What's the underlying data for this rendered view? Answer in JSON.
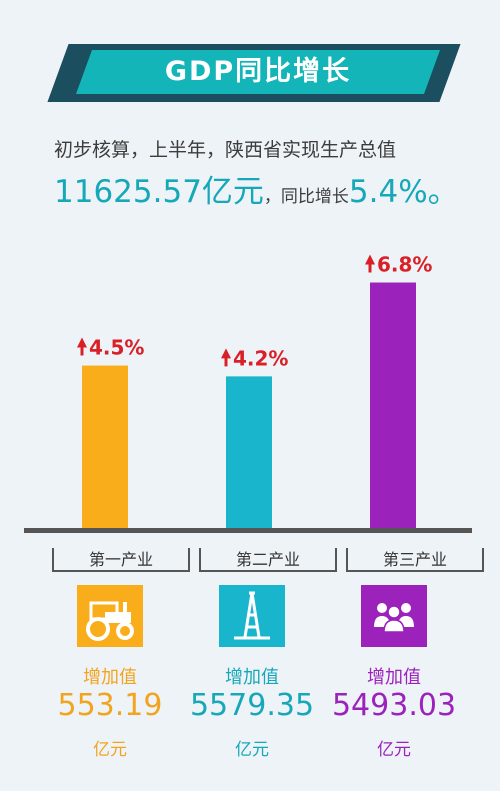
{
  "title": "GDP同比增长",
  "intro": {
    "line1": "初步核算，上半年，陕西省实现生产总值",
    "total": "11625.57亿元",
    "mid": "，同比增长",
    "growth": "5.4%。"
  },
  "chart_data": {
    "type": "bar",
    "categories": [
      "第一产业",
      "第二产业",
      "第三产业"
    ],
    "values": [
      4.5,
      4.2,
      6.8
    ],
    "data_labels": [
      "4.5%",
      "4.2%",
      "6.8%"
    ],
    "colors": [
      "#f9ad1b",
      "#18b5cc",
      "#9b22bb"
    ],
    "title": "",
    "xlabel": "",
    "ylabel": ""
  },
  "industries": [
    {
      "name": "第一产业",
      "icon": "tractor-icon",
      "value_label": "增加值",
      "value": "553.19",
      "unit": "亿元",
      "color": "#f3a41f"
    },
    {
      "name": "第二产业",
      "icon": "oil-derrick-icon",
      "value_label": "增加值",
      "value": "5579.35",
      "unit": "亿元",
      "color": "#16a8b8"
    },
    {
      "name": "第三产业",
      "icon": "people-group-icon",
      "value_label": "增加值",
      "value": "5493.03",
      "unit": "亿元",
      "color": "#9b22bb"
    }
  ]
}
